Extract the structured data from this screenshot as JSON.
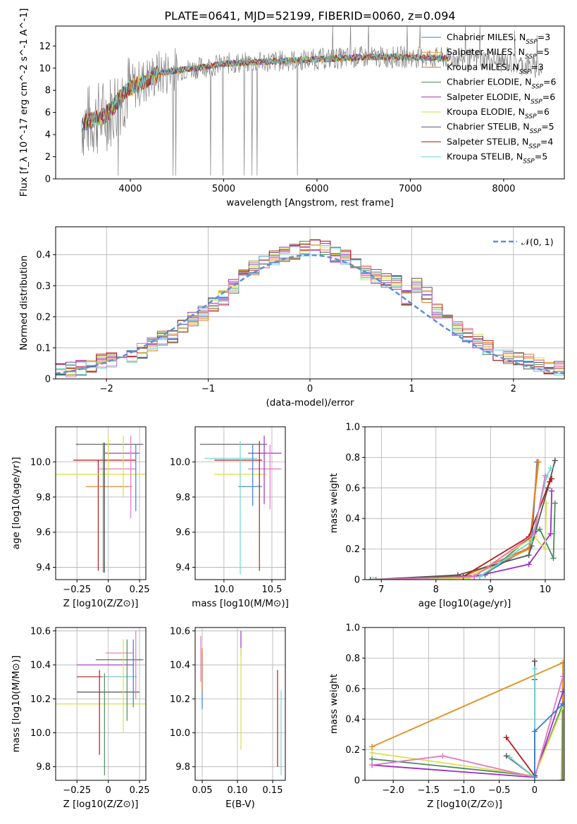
{
  "figure_title": "PLATE=0641, MJD=52199, FIBERID=0060, z=0.094",
  "colors": {
    "Chabrier MILES": "#3a7dd1",
    "Salpeter MILES": "#e0982a",
    "Kroupa MILES": "#e07a20",
    "Chabrier ELODIE": "#4e8a5e",
    "Salpeter ELODIE": "#9b2fc2",
    "Kroupa ELODIE": "#d9e04a",
    "Chabrier STELIB": "#555555",
    "Salpeter STELIB": "#b51c1c",
    "Kroupa STELIB": "#6fd6d6",
    "extra_pink": "#e377c2",
    "spectrum_gray": "#808080",
    "normal": "#5b8fd6"
  },
  "chart_data": [
    {
      "id": "spectrum",
      "type": "line",
      "title": "PLATE=0641, MJD=52199, FIBERID=0060, z=0.094",
      "xlabel": "wavelength [Angstrom, rest frame]",
      "ylabel": "Flux [f_λ 10^-17 erg cm^-2 s^-1 A^-1]",
      "xlim": [
        3200,
        8650
      ],
      "ylim": [
        0,
        13.8
      ],
      "xticks": [
        4000,
        5000,
        6000,
        7000,
        8000
      ],
      "yticks": [
        0,
        2,
        4,
        6,
        8,
        10,
        12
      ],
      "grid": false,
      "legend_position": "right",
      "legend": [
        {
          "name": "Chabrier MILES",
          "n": "3"
        },
        {
          "name": "Salpeter MILES",
          "n": "5"
        },
        {
          "name": "Kroupa MILES",
          "n": "3"
        },
        {
          "name": "Chabrier ELODIE",
          "n": "6"
        },
        {
          "name": "Salpeter ELODIE",
          "n": "6"
        },
        {
          "name": "Kroupa ELODIE",
          "n": "6"
        },
        {
          "name": "Chabrier STELIB",
          "n": "5"
        },
        {
          "name": "Salpeter STELIB",
          "n": "4"
        },
        {
          "name": "Kroupa STELIB",
          "n": "5"
        }
      ],
      "continuum_x": [
        3480,
        3700,
        3800,
        3950,
        4100,
        4300,
        4500,
        4800,
        5000,
        5500,
        6000,
        6500,
        7000,
        7400,
        7800,
        8200,
        8400
      ],
      "continuum_y": [
        5.0,
        5.6,
        6.3,
        8.0,
        8.6,
        9.5,
        9.8,
        10.1,
        10.4,
        10.6,
        10.8,
        11.0,
        11.0,
        10.9,
        10.8,
        10.3,
        9.9
      ]
    },
    {
      "id": "residuals",
      "type": "line",
      "xlabel": "(data-model)/error",
      "ylabel": "Normed distribution",
      "xlim": [
        -2.5,
        2.5
      ],
      "ylim": [
        0,
        0.49
      ],
      "xticks": [
        -2,
        -1,
        0,
        1,
        2
      ],
      "yticks": [
        0.0,
        0.1,
        0.2,
        0.3,
        0.4
      ],
      "grid": true,
      "legend_position": "top-right",
      "legend_label": "𝒩(0, 1)",
      "bins": [
        -2.5,
        -2.4,
        -2.3,
        -2.2,
        -2.1,
        -2.0,
        -1.9,
        -1.8,
        -1.7,
        -1.6,
        -1.5,
        -1.4,
        -1.3,
        -1.2,
        -1.1,
        -1.0,
        -0.9,
        -0.8,
        -0.7,
        -0.6,
        -0.5,
        -0.4,
        -0.3,
        -0.2,
        -0.1,
        0.0,
        0.1,
        0.2,
        0.3,
        0.4,
        0.5,
        0.6,
        0.7,
        0.8,
        0.9,
        1.0,
        1.1,
        1.2,
        1.3,
        1.4,
        1.5,
        1.6,
        1.7,
        1.8,
        1.9,
        2.0,
        2.1,
        2.2,
        2.3,
        2.4
      ],
      "base_values": [
        0.025,
        0.03,
        0.035,
        0.045,
        0.055,
        0.06,
        0.055,
        0.07,
        0.09,
        0.11,
        0.13,
        0.14,
        0.17,
        0.19,
        0.21,
        0.24,
        0.26,
        0.3,
        0.33,
        0.36,
        0.38,
        0.39,
        0.4,
        0.41,
        0.42,
        0.43,
        0.42,
        0.4,
        0.39,
        0.37,
        0.34,
        0.33,
        0.32,
        0.31,
        0.26,
        0.3,
        0.27,
        0.22,
        0.2,
        0.16,
        0.14,
        0.12,
        0.1,
        0.08,
        0.07,
        0.06,
        0.055,
        0.045,
        0.04,
        0.035
      ]
    },
    {
      "id": "age_vs_Z",
      "type": "scatter",
      "xlabel": "Z [log10(Z/Z⊙)]",
      "ylabel": "age  [log10(age/yr)]",
      "xlim": [
        -0.42,
        0.3
      ],
      "ylim": [
        9.33,
        10.2
      ],
      "xticks": [
        -0.25,
        0.0,
        0.25
      ],
      "yticks": [
        9.4,
        9.6,
        9.8,
        10.0
      ],
      "grid": true,
      "points": [
        {
          "x": 0.04,
          "y": 10.1,
          "xl": 0.3,
          "xr": 0.24,
          "yd": 0.0,
          "yu": 0.0,
          "c": "Chabrier STELIB"
        },
        {
          "x": 0.05,
          "y": 10.05,
          "xl": 0.08,
          "xr": 0.2,
          "yd": 0.0,
          "yu": 0.0,
          "c": "Salpeter ELODIE"
        },
        {
          "x": -0.08,
          "y": 10.01,
          "xl": 0.2,
          "xr": 0.3,
          "yd": 0.63,
          "yu": 0.0,
          "c": "Salpeter STELIB"
        },
        {
          "x": 0.12,
          "y": 9.96,
          "xl": 0.2,
          "xr": 0.1,
          "yd": 0.0,
          "yu": 0.0,
          "c": "extra_pink"
        },
        {
          "x": 0.0,
          "y": 9.93,
          "xl": 0.42,
          "xr": 0.3,
          "yd": 0.0,
          "yu": 0.22,
          "c": "Kroupa ELODIE"
        },
        {
          "x": 0.0,
          "y": 9.86,
          "xl": 0.18,
          "xr": 0.19,
          "yd": 0.0,
          "yu": 0.0,
          "c": "Kroupa MILES"
        },
        {
          "x": 0.18,
          "y": 10.1,
          "xl": 0.0,
          "xr": 0.0,
          "yd": 0.42,
          "yu": 0.05,
          "c": "extra_pink"
        },
        {
          "x": 0.22,
          "y": 10.05,
          "xl": 0.0,
          "xr": 0.0,
          "yd": 0.33,
          "yu": 0.05,
          "c": "Chabrier MILES"
        },
        {
          "x": -0.04,
          "y": 10.05,
          "xl": 0.0,
          "xr": 0.0,
          "yd": 0.68,
          "yu": 0.06,
          "c": "Chabrier ELODIE"
        },
        {
          "x": 0.12,
          "y": 10.08,
          "xl": 0.0,
          "xr": 0.0,
          "yd": 0.28,
          "yu": 0.07,
          "c": "Kroupa ELODIE"
        },
        {
          "x": -0.03,
          "y": 10.04,
          "xl": 0.0,
          "xr": 0.0,
          "yd": 0.67,
          "yu": 0.07,
          "c": "Chabrier STELIB"
        }
      ]
    },
    {
      "id": "age_vs_mass",
      "type": "scatter",
      "xlabel": "mass [log10(M/M⊙)]",
      "ylabel": "",
      "xlim": [
        9.7,
        10.64
      ],
      "ylim": [
        9.33,
        10.2
      ],
      "xticks": [
        10.0,
        10.5
      ],
      "yticks": [
        9.4,
        9.6,
        9.8,
        10.0
      ],
      "grid": true,
      "points": [
        {
          "x": 10.1,
          "y": 10.1,
          "xl": 0.35,
          "xr": 0.35,
          "yd": 0.0,
          "yu": 0.0,
          "c": "Chabrier STELIB"
        },
        {
          "x": 10.45,
          "y": 10.05,
          "xl": 0.2,
          "xr": 0.15,
          "yd": 0.0,
          "yu": 0.0,
          "c": "Salpeter ELODIE"
        },
        {
          "x": 10.15,
          "y": 10.02,
          "xl": 0.35,
          "xr": 0.2,
          "yd": 0.0,
          "yu": 0.0,
          "c": "Kroupa STELIB"
        },
        {
          "x": 10.2,
          "y": 10.01,
          "xl": 0.3,
          "xr": 0.2,
          "yd": 0.0,
          "yu": 0.0,
          "c": "Salpeter STELIB"
        },
        {
          "x": 10.45,
          "y": 9.96,
          "xl": 0.2,
          "xr": 0.15,
          "yd": 0.0,
          "yu": 0.0,
          "c": "extra_pink"
        },
        {
          "x": 10.2,
          "y": 9.93,
          "xl": 0.3,
          "xr": 0.25,
          "yd": 0.0,
          "yu": 0.0,
          "c": "Kroupa ELODIE"
        },
        {
          "x": 10.25,
          "y": 9.86,
          "xl": 0.1,
          "xr": 0.15,
          "yd": 0.0,
          "yu": 0.0,
          "c": "Chabrier MILES"
        },
        {
          "x": 10.17,
          "y": 10.08,
          "xl": 0.0,
          "xr": 0.0,
          "yd": 0.72,
          "yu": 0.04,
          "c": "Kroupa STELIB"
        },
        {
          "x": 10.37,
          "y": 10.08,
          "xl": 0.0,
          "xr": 0.0,
          "yd": 0.7,
          "yu": 0.04,
          "c": "Salpeter STELIB"
        },
        {
          "x": 10.42,
          "y": 10.08,
          "xl": 0.0,
          "xr": 0.0,
          "yd": 0.32,
          "yu": 0.07,
          "c": "Salpeter ELODIE"
        },
        {
          "x": 10.48,
          "y": 10.05,
          "xl": 0.0,
          "xr": 0.0,
          "yd": 0.32,
          "yu": 0.05,
          "c": "extra_pink"
        },
        {
          "x": 10.3,
          "y": 10.05,
          "xl": 0.0,
          "xr": 0.0,
          "yd": 0.3,
          "yu": 0.05,
          "c": "Chabrier MILES"
        }
      ]
    },
    {
      "id": "weight_vs_age",
      "type": "line",
      "xlabel": "age  [log10(age/yr)]",
      "ylabel": "mass weight",
      "xlim": [
        6.7,
        10.35
      ],
      "ylim": [
        0,
        1.0
      ],
      "xticks": [
        7,
        8,
        9,
        10
      ],
      "yticks": [
        0.0,
        0.2,
        0.4,
        0.6,
        0.8,
        1.0
      ],
      "grid": true,
      "series": [
        {
          "c": "Chabrier MILES",
          "x": [
            6.85,
            8.8,
            9.75,
            9.85
          ],
          "y": [
            0.0,
            0.02,
            0.22,
            0.77
          ]
        },
        {
          "c": "Salpeter MILES",
          "x": [
            6.9,
            8.6,
            9.7,
            9.88
          ],
          "y": [
            0.0,
            0.015,
            0.2,
            0.77
          ]
        },
        {
          "c": "Kroupa MILES",
          "x": [
            6.9,
            8.5,
            9.72,
            9.86
          ],
          "y": [
            0.0,
            0.02,
            0.21,
            0.77
          ]
        },
        {
          "c": "Chabrier ELODIE",
          "x": [
            6.85,
            8.9,
            9.9,
            10.15,
            10.18
          ],
          "y": [
            0.0,
            0.03,
            0.33,
            0.14,
            0.5
          ]
        },
        {
          "c": "Salpeter ELODIE",
          "x": [
            6.9,
            8.7,
            9.7,
            10.1,
            10.12
          ],
          "y": [
            0.0,
            0.02,
            0.1,
            0.3,
            0.58
          ]
        },
        {
          "c": "Kroupa ELODIE",
          "x": [
            6.85,
            8.6,
            9.8,
            10.0,
            10.02
          ],
          "y": [
            0.0,
            0.01,
            0.28,
            0.2,
            0.5
          ]
        },
        {
          "c": "Chabrier STELIB",
          "x": [
            6.8,
            8.4,
            9.7,
            10.05,
            10.18
          ],
          "y": [
            0.0,
            0.03,
            0.16,
            0.6,
            0.78
          ]
        },
        {
          "c": "Salpeter STELIB",
          "x": [
            6.9,
            8.5,
            9.7,
            10.08,
            10.12
          ],
          "y": [
            0.0,
            0.02,
            0.28,
            0.64,
            0.66
          ]
        },
        {
          "c": "Kroupa STELIB",
          "x": [
            6.85,
            8.8,
            9.75,
            10.02,
            10.1
          ],
          "y": [
            0.0,
            0.02,
            0.25,
            0.67,
            0.73
          ]
        },
        {
          "c": "extra_pink",
          "x": [
            6.9,
            8.7,
            9.8,
            10.0
          ],
          "y": [
            0.0,
            0.02,
            0.3,
            0.68
          ]
        }
      ]
    },
    {
      "id": "mass_vs_Z",
      "type": "scatter",
      "xlabel": "Z [log10(Z/Z⊙)]",
      "ylabel": "mass [log10(M/M⊙)]",
      "xlim": [
        -0.42,
        0.3
      ],
      "ylim": [
        9.72,
        10.62
      ],
      "xticks": [
        -0.25,
        0.0,
        0.25
      ],
      "yticks": [
        9.8,
        10.0,
        10.2,
        10.4,
        10.6
      ],
      "grid": true,
      "points": [
        {
          "x": 0.1,
          "y": 10.43,
          "xl": 0.2,
          "xr": 0.18,
          "yd": 0.0,
          "yu": 0.0,
          "c": "Chabrier STELIB"
        },
        {
          "x": 0.1,
          "y": 10.47,
          "xl": 0.12,
          "xr": 0.1,
          "yd": 0.0,
          "yu": 0.0,
          "c": "extra_pink"
        },
        {
          "x": 0.05,
          "y": 10.4,
          "xl": 0.3,
          "xr": 0.15,
          "yd": 0.0,
          "yu": 0.0,
          "c": "Salpeter ELODIE"
        },
        {
          "x": 0.0,
          "y": 10.33,
          "xl": 0.25,
          "xr": 0.22,
          "yd": 0.0,
          "yu": 0.0,
          "c": "Salpeter STELIB"
        },
        {
          "x": 0.05,
          "y": 10.33,
          "xl": 0.1,
          "xr": 0.18,
          "yd": 0.0,
          "yu": 0.0,
          "c": "Kroupa STELIB"
        },
        {
          "x": 0.0,
          "y": 10.24,
          "xl": 0.25,
          "xr": 0.25,
          "yd": 0.0,
          "yu": 0.0,
          "c": "Chabrier STELIB"
        },
        {
          "x": 0.0,
          "y": 10.17,
          "xl": 0.42,
          "xr": 0.3,
          "yd": 0.0,
          "yu": 0.0,
          "c": "Kroupa ELODIE"
        },
        {
          "x": -0.07,
          "y": 10.25,
          "xl": 0.0,
          "xr": 0.0,
          "yd": 0.38,
          "yu": 0.12,
          "c": "Salpeter STELIB"
        },
        {
          "x": -0.03,
          "y": 10.25,
          "xl": 0.0,
          "xr": 0.0,
          "yd": 0.5,
          "yu": 0.1,
          "c": "Chabrier ELODIE"
        },
        {
          "x": 0.15,
          "y": 10.35,
          "xl": 0.0,
          "xr": 0.0,
          "yd": 0.28,
          "yu": 0.2,
          "c": "Chabrier ELODIE"
        },
        {
          "x": 0.12,
          "y": 10.3,
          "xl": 0.0,
          "xr": 0.0,
          "yd": 0.3,
          "yu": 0.25,
          "c": "Kroupa ELODIE"
        },
        {
          "x": 0.2,
          "y": 10.35,
          "xl": 0.0,
          "xr": 0.0,
          "yd": 0.2,
          "yu": 0.2,
          "c": "Chabrier MILES"
        },
        {
          "x": 0.22,
          "y": 10.35,
          "xl": 0.0,
          "xr": 0.0,
          "yd": 0.15,
          "yu": 0.25,
          "c": "extra_pink"
        }
      ]
    },
    {
      "id": "mass_vs_EBV",
      "type": "scatter",
      "xlabel": "E(B-V)",
      "ylabel": "",
      "xlim": [
        0.04,
        0.168
      ],
      "ylim": [
        9.72,
        10.62
      ],
      "xticks": [
        0.05,
        0.1,
        0.15
      ],
      "yticks": [
        9.8,
        10.0,
        10.2,
        10.4,
        10.6
      ],
      "grid": true,
      "points": [
        {
          "x": 0.048,
          "y": 10.45,
          "xl": 0.0,
          "xr": 0.0,
          "yd": 0.15,
          "yu": 0.12,
          "c": "extra_pink"
        },
        {
          "x": 0.05,
          "y": 10.38,
          "xl": 0.0,
          "xr": 0.0,
          "yd": 0.24,
          "yu": 0.1,
          "c": "Chabrier MILES"
        },
        {
          "x": 0.05,
          "y": 10.35,
          "xl": 0.0,
          "xr": 0.0,
          "yd": 0.1,
          "yu": 0.15,
          "c": "Kroupa MILES"
        },
        {
          "x": 0.105,
          "y": 10.55,
          "xl": 0.0,
          "xr": 0.0,
          "yd": 0.1,
          "yu": 0.05,
          "c": "Salpeter ELODIE"
        },
        {
          "x": 0.105,
          "y": 10.2,
          "xl": 0.0,
          "xr": 0.0,
          "yd": 0.3,
          "yu": 0.3,
          "c": "Kroupa ELODIE"
        },
        {
          "x": 0.157,
          "y": 10.1,
          "xl": 0.0,
          "xr": 0.0,
          "yd": 0.3,
          "yu": 0.27,
          "c": "Salpeter STELIB"
        },
        {
          "x": 0.162,
          "y": 10.0,
          "xl": 0.0,
          "xr": 0.0,
          "yd": 0.25,
          "yu": 0.25,
          "c": "Kroupa STELIB"
        }
      ]
    },
    {
      "id": "weight_vs_Z",
      "type": "line",
      "xlabel": "Z [log10(Z/Z⊙)]",
      "ylabel": "mass weight",
      "xlim": [
        -2.4,
        0.42
      ],
      "ylim": [
        0,
        1.0
      ],
      "xticks": [
        -2.0,
        -1.5,
        -1.0,
        -0.5,
        0.0
      ],
      "yticks": [
        0.0,
        0.2,
        0.4,
        0.6,
        0.8,
        1.0
      ],
      "grid": true,
      "series": [
        {
          "c": "Kroupa MILES",
          "x": [
            -2.3,
            0.4,
            0.4
          ],
          "y": [
            0.22,
            0.77,
            0.0
          ]
        },
        {
          "c": "Salpeter MILES",
          "x": [
            -2.3,
            0.4,
            0.38
          ],
          "y": [
            0.22,
            0.77,
            0.0
          ]
        },
        {
          "c": "Chabrier ELODIE",
          "x": [
            -2.3,
            0.0,
            0.4,
            0.4
          ],
          "y": [
            0.14,
            0.03,
            0.5,
            0.0
          ]
        },
        {
          "c": "Salpeter ELODIE",
          "x": [
            -2.3,
            0.0,
            0.4
          ],
          "y": [
            0.1,
            0.02,
            0.58
          ]
        },
        {
          "c": "Kroupa ELODIE",
          "x": [
            -2.3,
            0.0,
            0.4
          ],
          "y": [
            0.18,
            0.03,
            0.48
          ]
        },
        {
          "c": "extra_pink",
          "x": [
            -2.3,
            -1.3,
            0.0,
            0.4
          ],
          "y": [
            0.1,
            0.16,
            0.02,
            0.68
          ]
        },
        {
          "c": "Chabrier STELIB",
          "x": [
            -0.4,
            0.0,
            0.0
          ],
          "y": [
            0.16,
            0.02,
            0.78
          ]
        },
        {
          "c": "Salpeter STELIB",
          "x": [
            -0.4,
            0.0,
            0.0
          ],
          "y": [
            0.28,
            0.03,
            0.66
          ]
        },
        {
          "c": "Kroupa STELIB",
          "x": [
            -0.35,
            0.0,
            0.0
          ],
          "y": [
            0.15,
            0.02,
            0.73
          ]
        },
        {
          "c": "Chabrier MILES",
          "x": [
            0.0,
            0.0,
            0.4
          ],
          "y": [
            0.02,
            0.32,
            0.5
          ]
        }
      ]
    }
  ]
}
